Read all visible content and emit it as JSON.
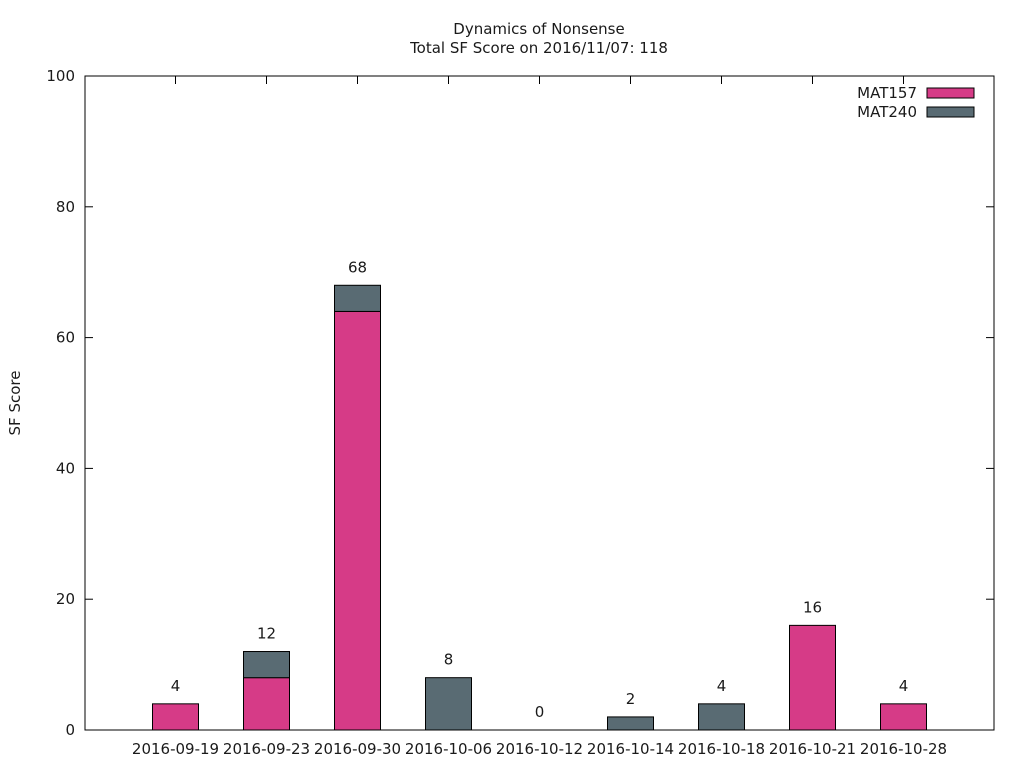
{
  "chart_data": {
    "type": "bar",
    "stacked": true,
    "title": "Dynamics of Nonsense",
    "subtitle": "Total SF Score on 2016/11/07: 118",
    "xlabel": "",
    "ylabel": "SF Score",
    "ylim": [
      0,
      100
    ],
    "yticks": [
      0,
      20,
      40,
      60,
      80,
      100
    ],
    "grid": false,
    "legend_position": "top-right",
    "categories": [
      "2016-09-19",
      "2016-09-23",
      "2016-09-30",
      "2016-10-06",
      "2016-10-12",
      "2016-10-14",
      "2016-10-18",
      "2016-10-21",
      "2016-10-28"
    ],
    "series": [
      {
        "name": "MAT157",
        "color": "#d63b87",
        "values": [
          4,
          8,
          64,
          0,
          0,
          0,
          0,
          16,
          4
        ]
      },
      {
        "name": "MAT240",
        "color": "#596b73",
        "values": [
          0,
          4,
          4,
          8,
          0,
          2,
          4,
          0,
          0
        ]
      }
    ],
    "totals": [
      "4",
      "12",
      "68",
      "8",
      "0",
      "2",
      "4",
      "16",
      "4"
    ]
  }
}
